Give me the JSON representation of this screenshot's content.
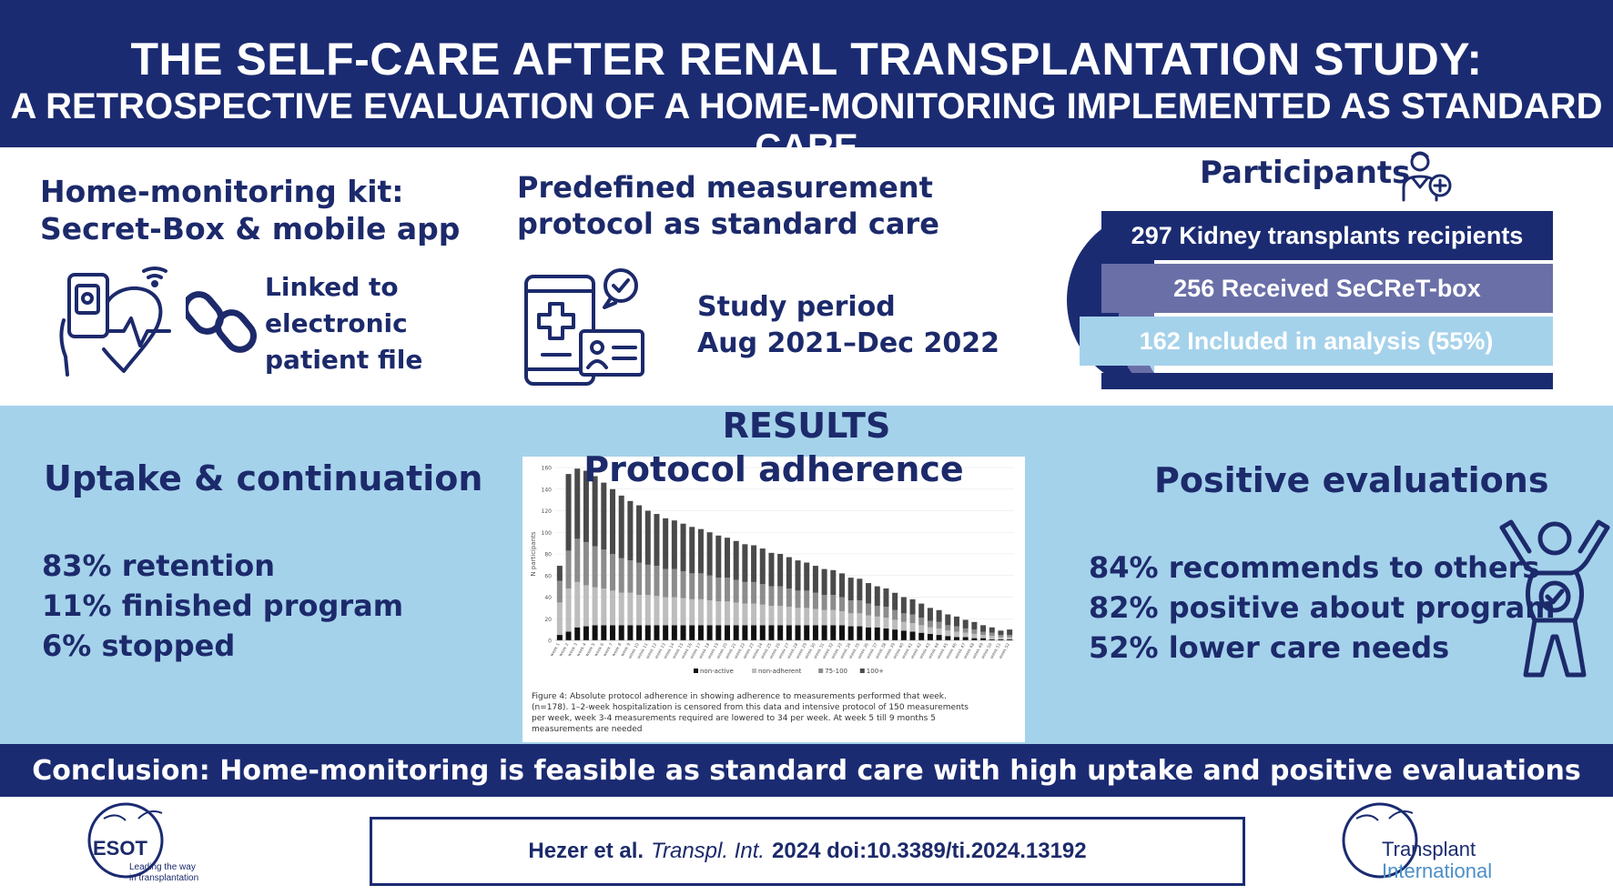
{
  "title": {
    "line1": "THE SELF-CARE AFTER RENAL TRANSPLANTATION STUDY:",
    "line2": "A RETROSPECTIVE EVALUATION OF A HOME-MONITORING IMPLEMENTED AS STANDARD CARE"
  },
  "kit": {
    "heading_line1": "Home-monitoring kit:",
    "heading_line2": "Secret-Box & mobile app",
    "linked_line1": "Linked to",
    "linked_line2": "electronic",
    "linked_line3": "patient file"
  },
  "protocol": {
    "heading_line1": "Predefined measurement",
    "heading_line2": "protocol as standard care",
    "period_label": "Study period",
    "period_value": "Aug 2021–Dec 2022"
  },
  "participants": {
    "heading": "Participants",
    "rows": [
      "297 Kidney transplants recipients",
      "256 Received SeCReT-box",
      "162 Included in analysis (55%)"
    ]
  },
  "results": {
    "heading": "RESULTS",
    "chart_heading": "Protocol adherence",
    "uptake": {
      "heading": "Uptake & continuation",
      "items": [
        "83% retention",
        "11% finished program",
        "6% stopped"
      ]
    },
    "positive": {
      "heading": "Positive evaluations",
      "items": [
        "84% recommends to others",
        "82% positive about program",
        "52% lower care needs"
      ]
    }
  },
  "chart_data": {
    "type": "bar",
    "stacked": true,
    "ylabel": "N participants",
    "ylim": [
      0,
      160
    ],
    "yticks": [
      0,
      20,
      40,
      60,
      80,
      100,
      120,
      140,
      160
    ],
    "categories": [
      "week 1",
      "week 2",
      "week 3",
      "week 4",
      "week 5",
      "week 6",
      "week 7",
      "week 8",
      "week 9",
      "week 10",
      "week 11",
      "week 12",
      "week 13",
      "week 14",
      "week 15",
      "week 16",
      "week 17",
      "week 18",
      "week 19",
      "week 20",
      "week 21",
      "week 22",
      "week 23",
      "week 24",
      "week 25",
      "week 26",
      "week 27",
      "week 28",
      "week 29",
      "week 30",
      "week 31",
      "week 32",
      "week 33",
      "week 34",
      "week 35",
      "week 36",
      "week 37",
      "week 38",
      "week 39",
      "week 40",
      "week 41",
      "week 42",
      "week 43",
      "week 44",
      "week 45",
      "week 46",
      "week 47",
      "week 48",
      "week 49",
      "week 50",
      "week 51",
      "week 52"
    ],
    "series": [
      {
        "name": "non-active",
        "color": "#111111",
        "values": [
          5,
          8,
          12,
          13,
          14,
          14,
          14,
          14,
          14,
          14,
          14,
          14,
          14,
          14,
          14,
          14,
          14,
          14,
          14,
          14,
          14,
          14,
          14,
          14,
          14,
          14,
          14,
          14,
          14,
          14,
          14,
          14,
          14,
          13,
          13,
          12,
          12,
          11,
          10,
          9,
          8,
          7,
          6,
          5,
          4,
          3,
          3,
          2,
          2,
          1,
          1,
          1
        ]
      },
      {
        "name": "non-adherent",
        "color": "#bdbdbd",
        "values": [
          30,
          40,
          42,
          38,
          35,
          34,
          32,
          30,
          30,
          28,
          28,
          27,
          26,
          26,
          25,
          24,
          24,
          23,
          22,
          22,
          21,
          20,
          20,
          19,
          18,
          18,
          17,
          16,
          16,
          15,
          14,
          14,
          13,
          12,
          12,
          11,
          10,
          10,
          9,
          8,
          8,
          7,
          6,
          6,
          5,
          5,
          4,
          4,
          3,
          3,
          2,
          2
        ]
      },
      {
        "name": "75-100",
        "color": "#8c8c8c",
        "values": [
          20,
          35,
          40,
          40,
          38,
          36,
          34,
          32,
          30,
          30,
          28,
          28,
          26,
          26,
          25,
          24,
          24,
          23,
          22,
          22,
          21,
          20,
          20,
          19,
          18,
          18,
          17,
          16,
          16,
          15,
          14,
          14,
          13,
          12,
          12,
          11,
          10,
          10,
          9,
          8,
          8,
          7,
          6,
          6,
          5,
          5,
          4,
          4,
          3,
          3,
          2,
          2
        ]
      },
      {
        "name": "100+",
        "color": "#4a4a4a",
        "values": [
          14,
          71,
          65,
          66,
          65,
          62,
          60,
          58,
          55,
          53,
          50,
          48,
          47,
          45,
          44,
          43,
          41,
          40,
          39,
          37,
          36,
          35,
          34,
          33,
          31,
          30,
          29,
          28,
          26,
          25,
          24,
          23,
          22,
          21,
          20,
          19,
          18,
          17,
          16,
          15,
          14,
          13,
          12,
          11,
          10,
          9,
          8,
          7,
          6,
          5,
          4,
          5
        ]
      }
    ],
    "legend": [
      "non-active",
      "non-adherent",
      "75-100",
      "100+"
    ],
    "legend_position": "bottom",
    "caption": "Figure 4: Absolute protocol adherence in showing adherence to measurements performed that week. (n=178). 1–2-week hospitalization is censored from this data and intensive protocol of 150 measurements per week, week 3-4 measurements required are lowered to 34 per week. At week 5 till 9 months 5 measurements are needed"
  },
  "conclusion": "Conclusion: Home-monitoring is feasible as standard care with high uptake and positive evaluations",
  "citation": {
    "authors": "Hezer et al.",
    "journal": "Transpl. Int.",
    "rest": "2024 doi:10.3389/ti.2024.13192"
  },
  "logos": {
    "esot_name": "ESOT",
    "esot_tagline_1": "Leading the way",
    "esot_tagline_2": "in transplantation",
    "ti_line1": "Transplant",
    "ti_line2": "International"
  },
  "colors": {
    "navy": "#1b2b72",
    "light_blue": "#a5d2eb",
    "funnel_mid": "#6a6fa8",
    "funnel_light": "#a5d2eb"
  }
}
